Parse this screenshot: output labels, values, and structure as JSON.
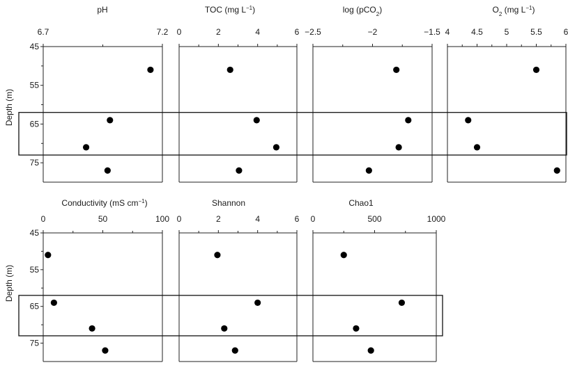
{
  "chart_data": [
    {
      "type": "scatter",
      "title": "pH",
      "xlim": [
        6.7,
        7.2
      ],
      "xticks": [
        "6.7",
        "7.2"
      ],
      "ylabel": "Depth (m)",
      "ylim": [
        45,
        80
      ],
      "yticks": [
        "45",
        "55",
        "65",
        "75"
      ],
      "depth": [
        51,
        64,
        71,
        77
      ],
      "x": [
        7.15,
        6.98,
        6.88,
        6.97
      ]
    },
    {
      "type": "scatter",
      "title_parts": [
        "TOC (mg L",
        "−1",
        ")"
      ],
      "xlim": [
        0,
        6
      ],
      "xticks": [
        "0",
        "2",
        "4",
        "6"
      ],
      "depth": [
        51,
        64,
        71,
        77
      ],
      "x": [
        2.6,
        3.95,
        4.95,
        3.05
      ]
    },
    {
      "type": "scatter",
      "title_parts": [
        "log (pCO",
        "2",
        ")"
      ],
      "xlim": [
        -2.5,
        -1.5
      ],
      "xticks": [
        "−2.5",
        "−2",
        "−1.5"
      ],
      "depth": [
        51,
        64,
        71,
        77
      ],
      "x": [
        -1.8,
        -1.7,
        -1.78,
        -2.03
      ]
    },
    {
      "type": "scatter",
      "title_parts": [
        "O",
        "2",
        " (mg L",
        "−1",
        ")"
      ],
      "xlim": [
        4,
        6
      ],
      "xticks": [
        "4",
        "4.5",
        "5",
        "5.5",
        "6"
      ],
      "depth": [
        51,
        64,
        71,
        77
      ],
      "x": [
        5.5,
        4.35,
        4.5,
        5.85
      ]
    },
    {
      "type": "scatter",
      "title_parts": [
        "Conductivity  (mS cm",
        "−1",
        ")"
      ],
      "xlim": [
        0,
        100
      ],
      "xticks": [
        "0",
        "50",
        "100"
      ],
      "ylabel": "Depth (m)",
      "ylim": [
        45,
        80
      ],
      "yticks": [
        "45",
        "55",
        "65",
        "75"
      ],
      "depth": [
        51,
        64,
        71,
        77
      ],
      "x": [
        4,
        9,
        41,
        52
      ]
    },
    {
      "type": "scatter",
      "title": "Shannon",
      "xlim": [
        0,
        6
      ],
      "xticks": [
        "0",
        "2",
        "4",
        "6"
      ],
      "depth": [
        51,
        64,
        71,
        77
      ],
      "x": [
        1.95,
        4.0,
        2.3,
        2.85
      ]
    },
    {
      "type": "scatter",
      "title": "Chao1",
      "xlim": [
        0,
        1000
      ],
      "xticks": [
        "0",
        "500",
        "1000"
      ],
      "depth": [
        51,
        64,
        71,
        77
      ],
      "x": [
        250,
        720,
        350,
        470
      ]
    }
  ],
  "highlight_depth_range": [
    62,
    73
  ]
}
